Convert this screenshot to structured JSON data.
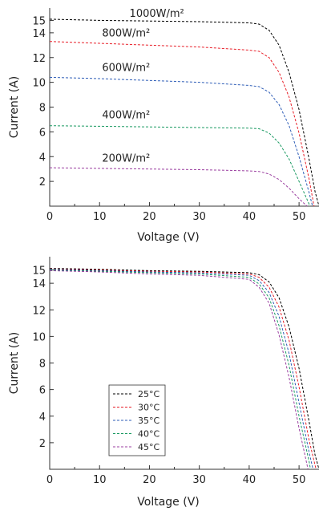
{
  "chart_data": [
    {
      "type": "line",
      "title": "",
      "xlabel": "Voltage (V)",
      "ylabel": "Current (A)",
      "xlim": [
        0,
        54
      ],
      "ylim": [
        0,
        16
      ],
      "xticks": [
        0,
        10,
        20,
        30,
        40,
        50
      ],
      "yticks": [
        2,
        4,
        6,
        8,
        10,
        12,
        14,
        15
      ],
      "grid": false,
      "legend": "inline annotations",
      "series": [
        {
          "name": "1000W/m²",
          "color": "#000000",
          "x": [
            0,
            10,
            20,
            30,
            40,
            42,
            44,
            46,
            48,
            50,
            52,
            53.2,
            54
          ],
          "y": [
            15.1,
            15.0,
            14.95,
            14.9,
            14.8,
            14.7,
            14.2,
            13.0,
            10.8,
            7.8,
            3.8,
            1.2,
            0
          ]
        },
        {
          "name": "800W/m²",
          "color": "#e8202a",
          "x": [
            0,
            10,
            20,
            30,
            40,
            42,
            44,
            46,
            48,
            50,
            52,
            53.0
          ],
          "y": [
            13.3,
            13.15,
            13.0,
            12.85,
            12.6,
            12.5,
            12.0,
            10.8,
            8.8,
            5.9,
            2.2,
            0
          ]
        },
        {
          "name": "600W/m²",
          "color": "#2e5db7",
          "x": [
            0,
            10,
            20,
            30,
            40,
            42,
            44,
            46,
            48,
            50,
            52,
            52.7
          ],
          "y": [
            10.4,
            10.3,
            10.15,
            10.0,
            9.75,
            9.65,
            9.2,
            8.2,
            6.5,
            4.0,
            1.1,
            0
          ]
        },
        {
          "name": "400W/m²",
          "color": "#1a9a62",
          "x": [
            0,
            10,
            20,
            30,
            40,
            42,
            44,
            46,
            48,
            50,
            52.2
          ],
          "y": [
            6.5,
            6.45,
            6.4,
            6.35,
            6.3,
            6.25,
            5.9,
            5.1,
            3.8,
            2.0,
            0
          ]
        },
        {
          "name": "200W/m²",
          "color": "#9b3fa0",
          "x": [
            0,
            10,
            20,
            30,
            40,
            42,
            44,
            46,
            48,
            50,
            51.6
          ],
          "y": [
            3.1,
            3.05,
            3.0,
            2.95,
            2.85,
            2.8,
            2.6,
            2.15,
            1.45,
            0.6,
            0
          ]
        }
      ],
      "annotations": [
        "1000W/m²",
        "800W/m²",
        "600W/m²",
        "400W/m²",
        "200W/m²"
      ]
    },
    {
      "type": "line",
      "title": "",
      "xlabel": "Voltage (V)",
      "ylabel": "Current (A)",
      "xlim": [
        0,
        54
      ],
      "ylim": [
        0,
        16
      ],
      "xticks": [
        0,
        10,
        20,
        30,
        40,
        50
      ],
      "yticks": [
        2,
        4,
        6,
        8,
        10,
        12,
        14,
        15
      ],
      "grid": false,
      "legend": "bottom-left",
      "series": [
        {
          "name": "25°C",
          "color": "#000000",
          "x": [
            0,
            10,
            20,
            30,
            40,
            42,
            44,
            46,
            48,
            50,
            52,
            53.2,
            54
          ],
          "y": [
            15.12,
            15.05,
            14.95,
            14.9,
            14.8,
            14.65,
            14.1,
            12.9,
            10.7,
            7.6,
            3.6,
            1.1,
            0
          ]
        },
        {
          "name": "30°C",
          "color": "#e8202a",
          "x": [
            0,
            10,
            20,
            30,
            40,
            42,
            44,
            46,
            48,
            50,
            52,
            53.4
          ],
          "y": [
            15.08,
            15.0,
            14.9,
            14.85,
            14.7,
            14.45,
            13.7,
            12.2,
            9.7,
            6.2,
            2.2,
            0
          ]
        },
        {
          "name": "35°C",
          "color": "#2e5db7",
          "x": [
            0,
            10,
            20,
            30,
            40,
            42,
            44,
            46,
            48,
            50,
            52,
            52.8
          ],
          "y": [
            15.05,
            14.95,
            14.85,
            14.78,
            14.6,
            14.2,
            13.3,
            11.5,
            8.7,
            5.0,
            1.3,
            0
          ]
        },
        {
          "name": "40°C",
          "color": "#1a9a62",
          "x": [
            0,
            10,
            20,
            30,
            40,
            42,
            44,
            46,
            48,
            50,
            52,
            52.3
          ],
          "y": [
            15.0,
            14.9,
            14.8,
            14.7,
            14.45,
            13.95,
            12.9,
            10.8,
            7.8,
            4.0,
            0.6,
            0
          ]
        },
        {
          "name": "45°C",
          "color": "#9b3fa0",
          "x": [
            0,
            10,
            20,
            30,
            40,
            42,
            44,
            46,
            48,
            50,
            51.8
          ],
          "y": [
            14.95,
            14.85,
            14.7,
            14.6,
            14.3,
            13.7,
            12.5,
            10.1,
            6.9,
            3.1,
            0
          ]
        }
      ]
    }
  ]
}
